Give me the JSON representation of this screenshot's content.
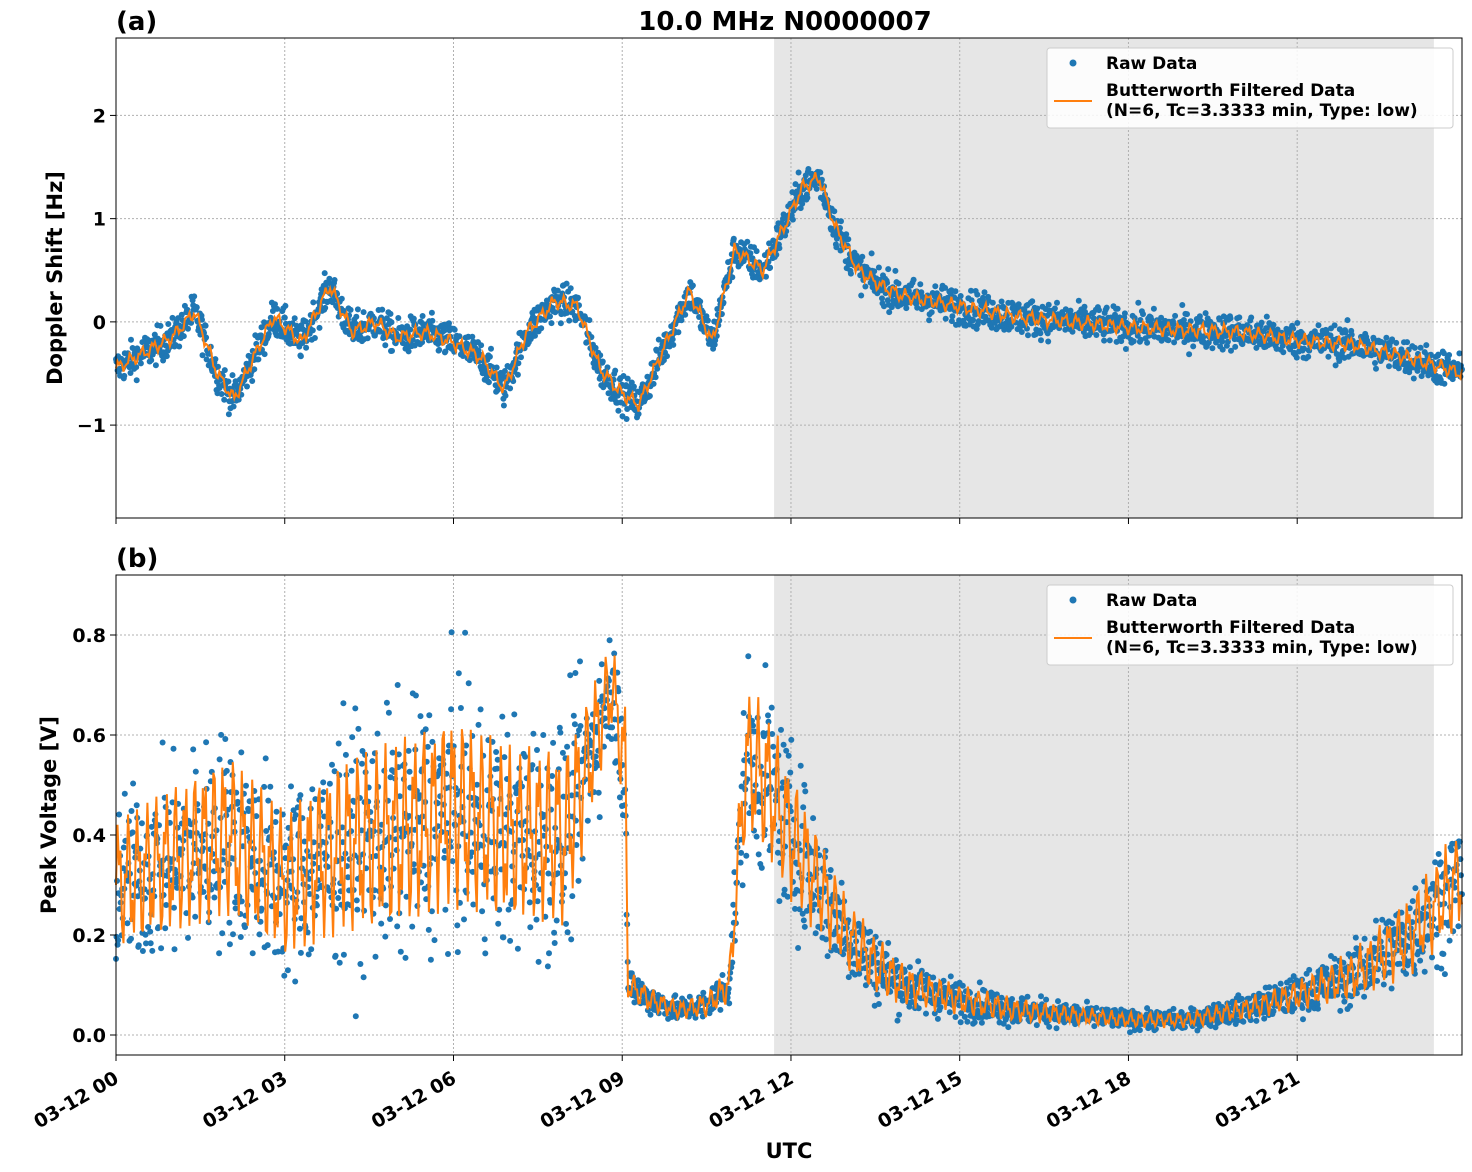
{
  "figure": {
    "title": "10.0 MHz N0000007",
    "xlabel": "UTC"
  },
  "chart_data": [
    {
      "type": "line",
      "panel_label": "(a)",
      "ylabel": "Doppler Shift [Hz]",
      "xlim_hours": [
        0,
        23.93
      ],
      "ylim": [
        -1.9,
        2.75
      ],
      "yticks": [
        -1,
        0,
        1,
        2
      ],
      "ytick_labels": [
        "−1",
        "0",
        "1",
        "2"
      ],
      "shaded_region_hours": [
        11.7,
        23.43
      ],
      "grid": true,
      "legend_position": "top-right",
      "series": [
        {
          "name": "Raw Data",
          "kind": "scatter",
          "color": "#1f77b4",
          "band_half_width": 0.17,
          "x": [
            0,
            0.5,
            1,
            1.4,
            1.6,
            1.8,
            2.1,
            2.4,
            2.8,
            3.3,
            3.8,
            4.2,
            4.6,
            5.0,
            5.5,
            6.0,
            6.5,
            6.9,
            7.3,
            7.8,
            8.2,
            8.6,
            9.0,
            9.3,
            9.7,
            10.2,
            10.6,
            11.0,
            11.5,
            11.9,
            12.2,
            12.5,
            12.8,
            13.2,
            13.6,
            14.0,
            15.0,
            16.0,
            17.0,
            18.0,
            19.0,
            20.0,
            21.0,
            22.0,
            23.0,
            23.93
          ],
          "y": [
            -0.45,
            -0.3,
            -0.15,
            0.1,
            -0.2,
            -0.5,
            -0.75,
            -0.4,
            0.05,
            -0.2,
            0.35,
            -0.1,
            0.0,
            -0.15,
            -0.1,
            -0.2,
            -0.35,
            -0.65,
            -0.1,
            0.2,
            0.15,
            -0.45,
            -0.7,
            -0.8,
            -0.3,
            0.3,
            -0.2,
            0.7,
            0.5,
            0.95,
            1.3,
            1.4,
            0.9,
            0.5,
            0.35,
            0.25,
            0.15,
            0.05,
            0.0,
            -0.05,
            -0.08,
            -0.1,
            -0.18,
            -0.22,
            -0.35,
            -0.5
          ]
        },
        {
          "name": "Butterworth Filtered Data\n(N=6, Tc=3.3333 min, Type: low)",
          "kind": "line",
          "color": "#ff7f0e",
          "x": [
            0,
            0.5,
            1,
            1.4,
            1.6,
            1.8,
            2.1,
            2.4,
            2.8,
            3.3,
            3.8,
            4.2,
            4.6,
            5.0,
            5.5,
            6.0,
            6.5,
            6.9,
            7.3,
            7.8,
            8.2,
            8.6,
            9.0,
            9.3,
            9.7,
            10.2,
            10.6,
            11.0,
            11.5,
            11.9,
            12.2,
            12.5,
            12.8,
            13.2,
            13.6,
            14.0,
            15.0,
            16.0,
            17.0,
            18.0,
            19.0,
            20.0,
            21.0,
            22.0,
            23.0,
            23.93
          ],
          "y": [
            -0.45,
            -0.3,
            -0.15,
            0.1,
            -0.2,
            -0.5,
            -0.75,
            -0.4,
            0.05,
            -0.2,
            0.35,
            -0.1,
            0.0,
            -0.15,
            -0.1,
            -0.2,
            -0.35,
            -0.65,
            -0.1,
            0.2,
            0.15,
            -0.45,
            -0.7,
            -0.8,
            -0.3,
            0.3,
            -0.2,
            0.7,
            0.5,
            0.95,
            1.3,
            1.4,
            0.9,
            0.5,
            0.35,
            0.25,
            0.15,
            0.05,
            0.0,
            -0.05,
            -0.08,
            -0.1,
            -0.18,
            -0.22,
            -0.35,
            -0.5
          ]
        }
      ]
    },
    {
      "type": "line",
      "panel_label": "(b)",
      "ylabel": "Peak Voltage [V]",
      "xlim_hours": [
        0,
        23.93
      ],
      "ylim": [
        -0.04,
        0.92
      ],
      "yticks": [
        0.0,
        0.2,
        0.4,
        0.6,
        0.8
      ],
      "ytick_labels": [
        "0.0",
        "0.2",
        "0.4",
        "0.6",
        "0.8"
      ],
      "xticks_hours": [
        0,
        3,
        6,
        9,
        12,
        15,
        18,
        21
      ],
      "xtick_labels": [
        "03-12 00",
        "03-12 03",
        "03-12 06",
        "03-12 09",
        "03-12 12",
        "03-12 15",
        "03-12 18",
        "03-12 21"
      ],
      "shaded_region_hours": [
        11.7,
        23.43
      ],
      "grid": true,
      "legend_position": "top-right",
      "series": [
        {
          "name": "Raw Data",
          "kind": "scatter",
          "color": "#1f77b4",
          "x": [
            0,
            1,
            2,
            3,
            4,
            5,
            6,
            7,
            8,
            8.8,
            9.05,
            9.1,
            9.5,
            10,
            10.5,
            10.9,
            11.2,
            11.6,
            12,
            12.5,
            13,
            13.5,
            14,
            15,
            16,
            17,
            18,
            19,
            20,
            21,
            22,
            23,
            23.93
          ],
          "y": [
            0.3,
            0.35,
            0.4,
            0.3,
            0.38,
            0.4,
            0.45,
            0.4,
            0.4,
            0.7,
            0.55,
            0.1,
            0.07,
            0.05,
            0.06,
            0.1,
            0.55,
            0.5,
            0.4,
            0.3,
            0.2,
            0.14,
            0.1,
            0.07,
            0.05,
            0.04,
            0.03,
            0.03,
            0.05,
            0.08,
            0.12,
            0.2,
            0.32
          ],
          "spread": [
            0.22,
            0.25,
            0.28,
            0.25,
            0.3,
            0.32,
            0.33,
            0.3,
            0.3,
            0.15,
            0.2,
            0.05,
            0.04,
            0.03,
            0.04,
            0.06,
            0.25,
            0.25,
            0.22,
            0.17,
            0.12,
            0.1,
            0.07,
            0.05,
            0.04,
            0.03,
            0.025,
            0.025,
            0.035,
            0.05,
            0.08,
            0.13,
            0.17
          ]
        },
        {
          "name": "Butterworth Filtered Data\n(N=6, Tc=3.3333 min, Type: low)",
          "kind": "line",
          "color": "#ff7f0e",
          "x": [
            0,
            1,
            2,
            3,
            4,
            5,
            6,
            7,
            8,
            8.8,
            9.05,
            9.1,
            9.5,
            10,
            10.5,
            10.9,
            11.2,
            11.6,
            12,
            12.5,
            13,
            13.5,
            14,
            15,
            16,
            17,
            18,
            19,
            20,
            21,
            22,
            23,
            23.93
          ],
          "y": [
            0.3,
            0.35,
            0.4,
            0.3,
            0.38,
            0.4,
            0.45,
            0.4,
            0.4,
            0.7,
            0.55,
            0.1,
            0.07,
            0.05,
            0.06,
            0.1,
            0.55,
            0.5,
            0.4,
            0.3,
            0.2,
            0.14,
            0.1,
            0.07,
            0.05,
            0.04,
            0.03,
            0.03,
            0.05,
            0.08,
            0.12,
            0.2,
            0.32
          ]
        }
      ]
    }
  ]
}
